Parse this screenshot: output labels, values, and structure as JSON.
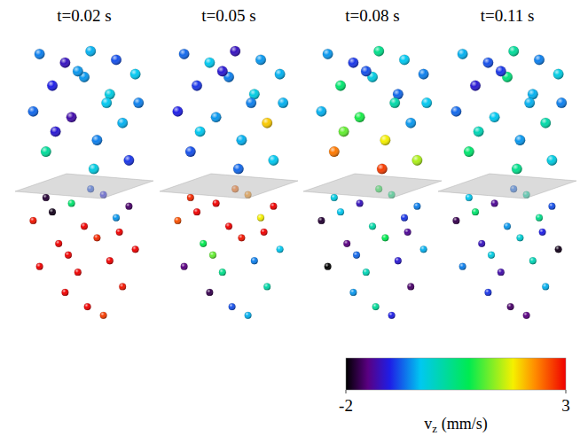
{
  "chart_data": {
    "type": "scatter",
    "tick_labels": false,
    "xlim": [
      -1,
      1
    ],
    "ylim": [
      0,
      10
    ],
    "panels": [
      {
        "title": "t=0.02 s",
        "x": [
          -0.7,
          -0.3,
          0.1,
          0.5,
          0.8,
          -0.5,
          0,
          0.4,
          -0.8,
          -0.2,
          0.6,
          0.2,
          -0.6,
          0.7,
          -0.1,
          0.35,
          -0.45,
          0.15,
          0.85,
          -0.6,
          -0.2,
          0.3,
          0.7,
          -0.8,
          0,
          0.5,
          -0.4,
          0.2,
          0.8,
          -0.7,
          -0.1,
          0.4,
          -0.3,
          0.6,
          0.05,
          -0.5,
          0.1,
          0.55,
          -0.25,
          0.3
        ],
        "y": [
          9.6,
          9.3,
          9.7,
          9.4,
          8.9,
          8.5,
          8.8,
          8.2,
          7.6,
          7.4,
          7.2,
          6.6,
          6.2,
          5.9,
          9.0,
          7.9,
          6.9,
          5.6,
          7.9,
          4.6,
          4.4,
          4.7,
          4.3,
          3.8,
          3.6,
          3.9,
          3.0,
          3.2,
          2.8,
          2.2,
          2.0,
          2.4,
          1.3,
          1.5,
          0.8,
          4.1,
          4.9,
          3.4,
          2.6,
          0.5
        ],
        "values": [
          -0.6,
          -1.2,
          -0.4,
          -0.8,
          -0.3,
          -1.0,
          -0.5,
          -0.2,
          -0.7,
          -1.3,
          -0.4,
          -0.6,
          0.3,
          -0.9,
          -0.5,
          -0.3,
          -1.1,
          -0.2,
          -0.6,
          -1.8,
          0.6,
          -1.0,
          -1.6,
          2.9,
          3.0,
          -0.5,
          3.0,
          2.8,
          3.0,
          3.0,
          3.0,
          3.0,
          3.0,
          2.9,
          3.0,
          -1.9,
          -0.8,
          3.0,
          3.0,
          2.7
        ]
      },
      {
        "title": "t=0.05 s",
        "x": [
          -0.7,
          -0.3,
          0.1,
          0.5,
          0.8,
          -0.5,
          0,
          0.4,
          -0.8,
          -0.2,
          0.6,
          0.2,
          -0.6,
          0.7,
          -0.1,
          0.35,
          -0.45,
          0.15,
          0.85,
          -0.6,
          -0.2,
          0.3,
          0.7,
          -0.8,
          0,
          0.5,
          -0.4,
          0.2,
          0.8,
          -0.7,
          -0.1,
          0.4,
          -0.3,
          0.6,
          0.05,
          -0.5,
          0.1,
          0.55,
          -0.25,
          0.3
        ],
        "y": [
          9.6,
          9.3,
          9.7,
          9.4,
          8.9,
          8.5,
          8.8,
          8.2,
          7.6,
          7.4,
          7.2,
          6.6,
          6.2,
          5.9,
          9.0,
          7.9,
          6.9,
          5.6,
          7.9,
          4.6,
          4.4,
          4.7,
          4.3,
          3.8,
          3.6,
          3.9,
          3.0,
          3.2,
          2.8,
          2.2,
          2.0,
          2.4,
          1.3,
          1.5,
          0.8,
          4.1,
          4.9,
          3.4,
          2.6,
          0.5
        ],
        "values": [
          -0.7,
          -0.3,
          -1.2,
          -0.5,
          -0.4,
          -0.9,
          -0.6,
          -0.2,
          -1.0,
          -0.5,
          2.0,
          -0.4,
          -0.8,
          -0.3,
          -1.1,
          -0.6,
          -0.3,
          -0.7,
          -0.4,
          2.8,
          3.0,
          2.3,
          3.0,
          2.6,
          3.0,
          1.8,
          0.8,
          2.9,
          -0.3,
          -1.5,
          0.4,
          -0.6,
          -1.7,
          0.2,
          -0.8,
          3.0,
          2.5,
          3.0,
          1.2,
          -0.4
        ]
      },
      {
        "title": "t=0.08 s",
        "x": [
          -0.7,
          -0.3,
          0.1,
          0.5,
          0.8,
          -0.5,
          0,
          0.4,
          -0.8,
          -0.2,
          0.6,
          0.2,
          -0.6,
          0.7,
          -0.1,
          0.35,
          -0.45,
          0.15,
          0.85,
          -0.6,
          -0.2,
          0.3,
          0.7,
          -0.8,
          0,
          0.5,
          -0.4,
          0.2,
          0.8,
          -0.7,
          -0.1,
          0.4,
          -0.3,
          0.6,
          0.05,
          -0.5,
          0.1,
          0.55,
          -0.25,
          0.3
        ],
        "y": [
          9.6,
          9.3,
          9.7,
          9.4,
          8.9,
          8.5,
          8.8,
          8.2,
          7.6,
          7.4,
          7.2,
          6.6,
          6.2,
          5.9,
          9.0,
          7.9,
          6.9,
          5.6,
          7.9,
          4.6,
          4.4,
          4.7,
          4.3,
          3.8,
          3.6,
          3.9,
          3.0,
          3.2,
          2.8,
          2.2,
          2.0,
          2.4,
          1.3,
          1.5,
          0.8,
          4.1,
          4.9,
          3.4,
          2.6,
          0.5
        ],
        "values": [
          -0.5,
          -0.9,
          0.4,
          -0.3,
          -0.6,
          0.6,
          -0.2,
          -0.7,
          -0.4,
          0.9,
          -0.5,
          1.8,
          2.4,
          1.5,
          -0.8,
          0.2,
          1.2,
          2.7,
          -0.3,
          -0.2,
          -1.2,
          0.5,
          -0.6,
          -1.8,
          0.2,
          -0.9,
          -1.5,
          0.8,
          -0.4,
          -2.0,
          0.1,
          -1.1,
          -0.5,
          -1.6,
          0.3,
          -0.3,
          0.9,
          -1.4,
          -0.7,
          -1.0
        ]
      },
      {
        "title": "t=0.11 s",
        "x": [
          -0.7,
          -0.3,
          0.1,
          0.5,
          0.8,
          -0.5,
          0,
          0.4,
          -0.8,
          -0.2,
          0.6,
          0.2,
          -0.6,
          0.7,
          -0.1,
          0.35,
          -0.45,
          0.15,
          0.85,
          -0.6,
          -0.2,
          0.3,
          0.7,
          -0.8,
          0,
          0.5,
          -0.4,
          0.2,
          0.8,
          -0.7,
          -0.1,
          0.4,
          -0.3,
          0.6,
          0.05,
          -0.5,
          0.1,
          0.55,
          -0.25,
          0.3
        ],
        "y": [
          9.6,
          9.3,
          9.7,
          9.4,
          8.9,
          8.5,
          8.8,
          8.2,
          7.6,
          7.4,
          7.2,
          6.6,
          6.2,
          5.9,
          9.0,
          7.9,
          6.9,
          5.6,
          7.9,
          4.6,
          4.4,
          4.7,
          4.3,
          3.8,
          3.6,
          3.9,
          3.0,
          3.2,
          2.8,
          2.2,
          2.0,
          2.4,
          1.3,
          1.5,
          0.8,
          4.1,
          4.9,
          3.4,
          2.6,
          0.5
        ],
        "values": [
          -0.4,
          -0.8,
          0.3,
          -0.6,
          -0.2,
          -1.1,
          0.5,
          -0.4,
          -0.7,
          -0.3,
          0.2,
          -0.5,
          0.6,
          -0.2,
          -0.9,
          -0.4,
          0.1,
          0.4,
          -0.6,
          -0.3,
          -1.4,
          0.2,
          -0.8,
          -1.7,
          -0.5,
          0.4,
          -1.2,
          -0.1,
          -1.9,
          -0.6,
          -1.3,
          0.1,
          -0.9,
          -0.4,
          -1.6,
          0.6,
          -0.7,
          -1.0,
          -0.2,
          -1.5
        ]
      }
    ],
    "colorbar": {
      "range": [
        -2,
        3
      ],
      "ticks": [
        -2,
        3
      ],
      "label": [
        "v",
        "z",
        " (mm/s)"
      ]
    }
  }
}
